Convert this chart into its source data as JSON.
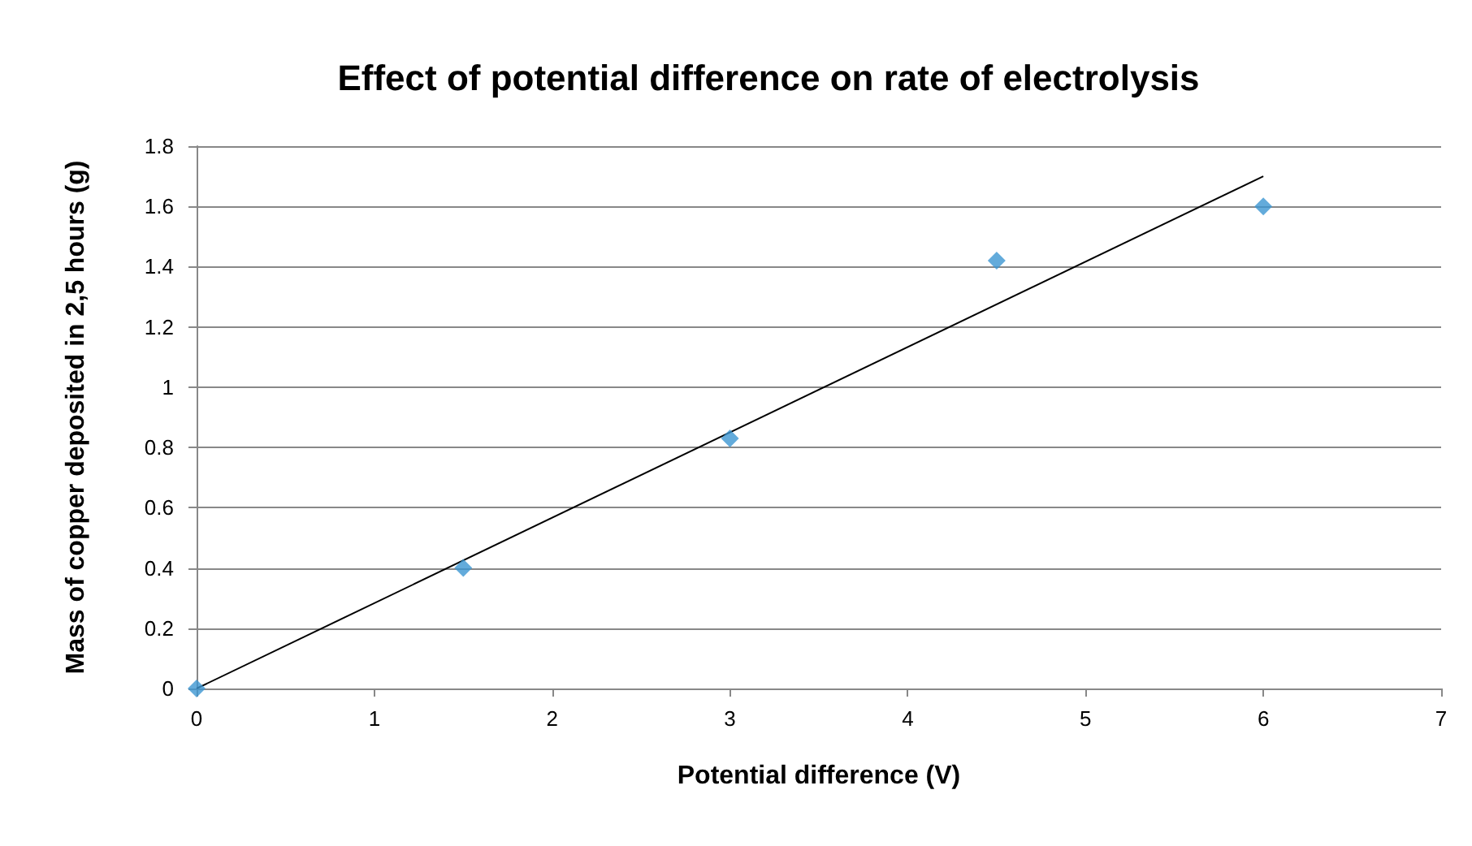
{
  "chart_data": {
    "type": "scatter",
    "title": "Effect of potential difference on rate of electrolysis",
    "xlabel": "Potential difference (V)",
    "ylabel": "Mass of copper deposited in 2,5 hours (g)",
    "x": [
      0,
      1.5,
      3,
      4.5,
      6
    ],
    "series": [
      {
        "color": "#3c96d2",
        "values": [
          0,
          0.4,
          0.83,
          1.42,
          1.6
        ],
        "marker": "diamond"
      },
      {
        "type": "line",
        "x": [
          0,
          6
        ],
        "values": [
          0,
          1.7
        ],
        "color": "#000000",
        "marker": "none",
        "line_style": "solid"
      }
    ],
    "xlim": [
      0,
      7
    ],
    "xticks": [
      0,
      1,
      2,
      3,
      4,
      5,
      6,
      7
    ],
    "ylim": [
      0,
      1.8
    ],
    "yticks": [
      0,
      0.2,
      0.4,
      0.6,
      0.8,
      1,
      1.2,
      1.4,
      1.6,
      1.8
    ],
    "grid": "y"
  }
}
